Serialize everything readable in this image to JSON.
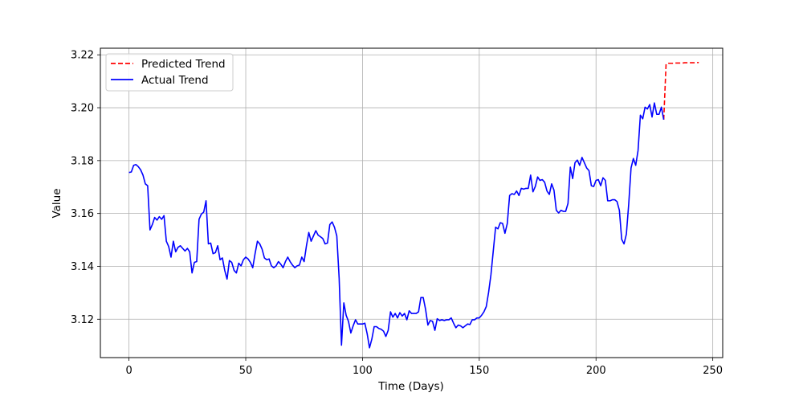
{
  "chart_data": {
    "type": "line",
    "title": "",
    "xlabel": "Time (Days)",
    "ylabel": "Value",
    "xlim": [
      -12.25,
      254.25
    ],
    "ylim": [
      3.1055,
      3.2225
    ],
    "xticks": [
      0,
      50,
      100,
      150,
      200,
      250
    ],
    "xtick_labels": [
      "0",
      "50",
      "100",
      "150",
      "200",
      "250"
    ],
    "yticks": [
      3.12,
      3.14,
      3.16,
      3.18,
      3.2,
      3.22
    ],
    "ytick_labels": [
      "3.12",
      "3.14",
      "3.16",
      "3.18",
      "3.20",
      "3.22"
    ],
    "grid": true,
    "legend_position": "upper left",
    "series": [
      {
        "name": "Predicted Trend",
        "color": "#ff0000",
        "style": "dashed",
        "x": [
          229,
          230,
          231,
          232,
          233,
          234,
          235,
          236,
          237,
          238,
          239,
          240,
          241,
          242,
          243,
          244
        ],
        "y": [
          3.1955,
          3.2165,
          3.2168,
          3.2168,
          3.2168,
          3.2169,
          3.2169,
          3.2169,
          3.2169,
          3.217,
          3.217,
          3.217,
          3.217,
          3.217,
          3.2171,
          3.2171
        ]
      },
      {
        "name": "Actual Trend",
        "color": "#0000ff",
        "style": "solid",
        "x": [
          0,
          1,
          2,
          3,
          4,
          5,
          6,
          7,
          8,
          9,
          10,
          11,
          12,
          13,
          14,
          15,
          16,
          17,
          18,
          19,
          20,
          21,
          22,
          23,
          24,
          25,
          26,
          27,
          28,
          29,
          30,
          31,
          32,
          33,
          34,
          35,
          36,
          37,
          38,
          39,
          40,
          41,
          42,
          43,
          44,
          45,
          46,
          47,
          48,
          49,
          50,
          51,
          52,
          53,
          54,
          55,
          56,
          57,
          58,
          59,
          60,
          61,
          62,
          63,
          64,
          65,
          66,
          67,
          68,
          69,
          70,
          71,
          72,
          73,
          74,
          75,
          76,
          77,
          78,
          79,
          80,
          81,
          82,
          83,
          84,
          85,
          86,
          87,
          88,
          89,
          90,
          91,
          92,
          93,
          94,
          95,
          96,
          97,
          98,
          99,
          100,
          101,
          102,
          103,
          104,
          105,
          106,
          107,
          108,
          109,
          110,
          111,
          112,
          113,
          114,
          115,
          116,
          117,
          118,
          119,
          120,
          121,
          122,
          123,
          124,
          125,
          126,
          127,
          128,
          129,
          130,
          131,
          132,
          133,
          134,
          135,
          136,
          137,
          138,
          139,
          140,
          141,
          142,
          143,
          144,
          145,
          146,
          147,
          148,
          149,
          150,
          151,
          152,
          153,
          154,
          155,
          156,
          157,
          158,
          159,
          160,
          161,
          162,
          163,
          164,
          165,
          166,
          167,
          168,
          169,
          170,
          171,
          172,
          173,
          174,
          175,
          176,
          177,
          178,
          179,
          180,
          181,
          182,
          183,
          184,
          185,
          186,
          187,
          188,
          189,
          190,
          191,
          192,
          193,
          194,
          195,
          196,
          197,
          198,
          199,
          200,
          201,
          202,
          203,
          204,
          205,
          206,
          207,
          208,
          209,
          210,
          211,
          212,
          213,
          214,
          215,
          216,
          217,
          218,
          219,
          220,
          221,
          222,
          223,
          224,
          225,
          226,
          227,
          228,
          229
        ],
        "y": [
          3.1755,
          3.1757,
          3.1782,
          3.1785,
          3.1777,
          3.1765,
          3.1745,
          3.1712,
          3.1705,
          3.1538,
          3.1558,
          3.1585,
          3.1575,
          3.1588,
          3.1578,
          3.1592,
          3.1495,
          3.1475,
          3.1435,
          3.1495,
          3.1455,
          3.1472,
          3.1478,
          3.1468,
          3.1458,
          3.1468,
          3.1455,
          3.1375,
          3.1415,
          3.1418,
          3.1578,
          3.1598,
          3.1605,
          3.1648,
          3.1485,
          3.1488,
          3.1448,
          3.1452,
          3.1478,
          3.1425,
          3.1432,
          3.1385,
          3.1352,
          3.1422,
          3.1415,
          3.1385,
          3.1375,
          3.1412,
          3.1402,
          3.1425,
          3.1435,
          3.1428,
          3.1415,
          3.1395,
          3.1448,
          3.1495,
          3.1485,
          3.1465,
          3.1432,
          3.1425,
          3.1428,
          3.1402,
          3.1395,
          3.1402,
          3.1418,
          3.1408,
          3.1395,
          3.1418,
          3.1435,
          3.1418,
          3.1405,
          3.1395,
          3.1402,
          3.1405,
          3.1435,
          3.1418,
          3.1478,
          3.1528,
          3.1495,
          3.1515,
          3.1535,
          3.1518,
          3.1512,
          3.1505,
          3.1485,
          3.1488,
          3.1558,
          3.1568,
          3.1548,
          3.1515,
          3.1355,
          3.1102,
          3.1262,
          3.1215,
          3.1192,
          3.1148,
          3.1175,
          3.1198,
          3.1182,
          3.1182,
          3.1182,
          3.1185,
          3.1145,
          3.1092,
          3.1125,
          3.1172,
          3.1172,
          3.1165,
          3.1162,
          3.1155,
          3.1135,
          3.1158,
          3.1228,
          3.1208,
          3.1222,
          3.1205,
          3.1225,
          3.1212,
          3.1222,
          3.1198,
          3.1232,
          3.1222,
          3.1222,
          3.1222,
          3.1228,
          3.1282,
          3.1282,
          3.1238,
          3.1178,
          3.1195,
          3.1192,
          3.1158,
          3.1202,
          3.1195,
          3.1198,
          3.1195,
          3.1198,
          3.1198,
          3.1205,
          3.1185,
          3.1168,
          3.1178,
          3.1175,
          3.1168,
          3.1175,
          3.1182,
          3.118,
          3.1198,
          3.1198,
          3.1205,
          3.1205,
          3.1215,
          3.1228,
          3.1248,
          3.1302,
          3.1368,
          3.1458,
          3.1548,
          3.1542,
          3.1565,
          3.1562,
          3.1525,
          3.1562,
          3.1668,
          3.1675,
          3.1672,
          3.1685,
          3.1668,
          3.1695,
          3.1692,
          3.1695,
          3.1695,
          3.1745,
          3.1682,
          3.1702,
          3.1738,
          3.1725,
          3.1728,
          3.1718,
          3.1685,
          3.1672,
          3.1712,
          3.1688,
          3.1612,
          3.1602,
          3.1612,
          3.1608,
          3.1608,
          3.1638,
          3.1775,
          3.1732,
          3.1792,
          3.1802,
          3.1782,
          3.1812,
          3.1792,
          3.1772,
          3.1762,
          3.1705,
          3.1702,
          3.1725,
          3.1728,
          3.1705,
          3.1735,
          3.1725,
          3.1648,
          3.1648,
          3.1652,
          3.1652,
          3.1645,
          3.1612,
          3.1502,
          3.1485,
          3.1522,
          3.1635,
          3.1772,
          3.1808,
          3.1782,
          3.1838,
          3.1972,
          3.1958,
          3.2002,
          3.1995,
          3.2012,
          3.1965,
          3.2018,
          3.1975,
          3.1975,
          3.2002,
          3.1955
        ]
      }
    ]
  }
}
